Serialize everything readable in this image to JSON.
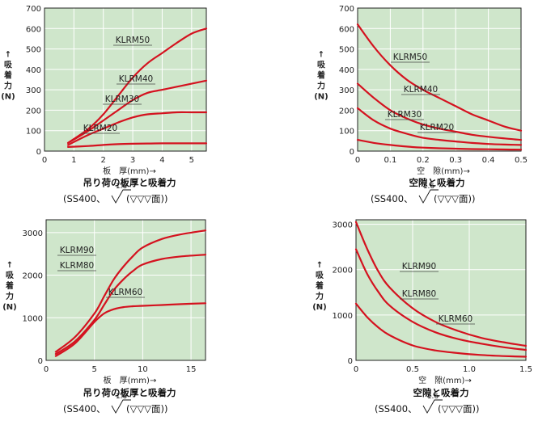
{
  "chart_data": [
    {
      "type": "line",
      "xlabel": "板　厚(mm)→",
      "ylabel": [
        "↑",
        "吸",
        "着",
        "力",
        "(N)"
      ],
      "caption": "吊り荷の板厚と吸着力",
      "condition": {
        "prefix": "(SS400、",
        "roughness": "1.6",
        "suffix": "(▽▽▽面))"
      },
      "xlim": [
        0,
        5.5
      ],
      "ylim": [
        0,
        700
      ],
      "xticks": [
        "0",
        "1",
        "2",
        "3",
        "4",
        "5"
      ],
      "yticks": [
        "0",
        "100",
        "200",
        "300",
        "400",
        "500",
        "600",
        "700"
      ],
      "series": [
        {
          "name": "KLRM50",
          "x": [
            0.8,
            1.5,
            2.0,
            2.5,
            3.0,
            3.5,
            4.0,
            4.5,
            5.0,
            5.5
          ],
          "y": [
            40,
            110,
            180,
            270,
            360,
            430,
            480,
            530,
            575,
            600
          ]
        },
        {
          "name": "KLRM40",
          "x": [
            0.8,
            1.5,
            2.0,
            2.5,
            3.0,
            3.5,
            4.0,
            4.5,
            5.0,
            5.5
          ],
          "y": [
            40,
            100,
            150,
            200,
            250,
            285,
            300,
            315,
            330,
            345
          ]
        },
        {
          "name": "KLRM30",
          "x": [
            0.8,
            1.5,
            2.0,
            2.5,
            3.0,
            3.5,
            4.0,
            4.5,
            5.0,
            5.5
          ],
          "y": [
            30,
            80,
            110,
            140,
            165,
            180,
            185,
            190,
            190,
            190
          ]
        },
        {
          "name": "KLRM20",
          "x": [
            0.8,
            1.5,
            2.0,
            2.5,
            3.0,
            3.5,
            4.0,
            4.5,
            5.0,
            5.5
          ],
          "y": [
            20,
            25,
            30,
            34,
            36,
            37,
            38,
            38,
            38,
            38
          ]
        }
      ]
    },
    {
      "type": "line",
      "xlabel": "空　隙(mm)→",
      "ylabel": [
        "↑",
        "吸",
        "着",
        "力",
        "(N)"
      ],
      "caption": "空隙と吸着力",
      "condition": {
        "prefix": "(SS400、",
        "roughness": "1.6",
        "suffix": "(▽▽▽面))"
      },
      "xlim": [
        0,
        0.5
      ],
      "ylim": [
        0,
        700
      ],
      "xticks": [
        "0",
        "0.1",
        "0.2",
        "0.3",
        "0.4",
        "0.5"
      ],
      "yticks": [
        "0",
        "100",
        "200",
        "300",
        "400",
        "500",
        "600",
        "700"
      ],
      "series": [
        {
          "name": "KLRM50",
          "x": [
            0,
            0.05,
            0.1,
            0.15,
            0.2,
            0.25,
            0.3,
            0.35,
            0.4,
            0.45,
            0.5
          ],
          "y": [
            620,
            510,
            420,
            350,
            300,
            260,
            220,
            180,
            150,
            120,
            100
          ]
        },
        {
          "name": "KLRM40",
          "x": [
            0,
            0.05,
            0.1,
            0.15,
            0.2,
            0.25,
            0.3,
            0.35,
            0.4,
            0.45,
            0.5
          ],
          "y": [
            330,
            260,
            200,
            160,
            130,
            110,
            95,
            80,
            70,
            62,
            55
          ]
        },
        {
          "name": "KLRM30",
          "x": [
            0,
            0.05,
            0.1,
            0.15,
            0.2,
            0.25,
            0.3,
            0.35,
            0.4,
            0.45,
            0.5
          ],
          "y": [
            210,
            150,
            110,
            85,
            65,
            55,
            47,
            40,
            35,
            32,
            30
          ]
        },
        {
          "name": "KLRM20",
          "x": [
            0,
            0.05,
            0.1,
            0.15,
            0.2,
            0.25,
            0.3,
            0.35,
            0.4,
            0.45,
            0.5
          ],
          "y": [
            55,
            40,
            30,
            22,
            17,
            14,
            12,
            10,
            9,
            8,
            7
          ]
        }
      ]
    },
    {
      "type": "line",
      "xlabel": "板　厚(mm)→",
      "ylabel": [
        "↑",
        "吸",
        "着",
        "力",
        "(N)"
      ],
      "caption": "吊り荷の板厚と吸着力",
      "condition": {
        "prefix": "(SS400、",
        "roughness": "1.6",
        "suffix": "(▽▽▽面))"
      },
      "xlim": [
        0,
        16.5
      ],
      "ylim": [
        0,
        3300
      ],
      "xticks": [
        "0",
        "5",
        "10",
        "15"
      ],
      "yticks": [
        "0",
        "1000",
        "2000",
        "3000"
      ],
      "series": [
        {
          "name": "KLRM90",
          "x": [
            1,
            3,
            5,
            6,
            7,
            8,
            9,
            10,
            12,
            14,
            16.5
          ],
          "y": [
            200,
            550,
            1100,
            1500,
            1900,
            2200,
            2450,
            2650,
            2850,
            2960,
            3050
          ]
        },
        {
          "name": "KLRM80",
          "x": [
            1,
            3,
            5,
            6,
            7,
            8,
            9,
            10,
            12,
            14,
            16.5
          ],
          "y": [
            150,
            450,
            950,
            1300,
            1650,
            1900,
            2100,
            2250,
            2380,
            2440,
            2480
          ]
        },
        {
          "name": "KLRM60",
          "x": [
            1,
            3,
            5,
            6,
            7,
            8,
            9,
            10,
            12,
            14,
            16.5
          ],
          "y": [
            100,
            400,
            900,
            1100,
            1200,
            1250,
            1270,
            1280,
            1300,
            1320,
            1340
          ]
        }
      ]
    },
    {
      "type": "line",
      "xlabel": "空　隙(mm)→",
      "ylabel": [
        "↑",
        "吸",
        "着",
        "力",
        "(N)"
      ],
      "caption": "空隙と吸着力",
      "condition": {
        "prefix": "(SS400、",
        "roughness": "1.6",
        "suffix": "(▽▽▽面))"
      },
      "xlim": [
        0,
        1.5
      ],
      "ylim": [
        0,
        3100
      ],
      "xticks": [
        "0",
        "0.5",
        "1.0",
        "1.5"
      ],
      "yticks": [
        "0",
        "1000",
        "2000",
        "3000"
      ],
      "series": [
        {
          "name": "KLRM90",
          "x": [
            0,
            0.1,
            0.2,
            0.3,
            0.5,
            0.7,
            0.9,
            1.1,
            1.3,
            1.5
          ],
          "y": [
            3050,
            2450,
            1950,
            1600,
            1150,
            850,
            650,
            500,
            400,
            320
          ]
        },
        {
          "name": "KLRM80",
          "x": [
            0,
            0.1,
            0.2,
            0.3,
            0.5,
            0.7,
            0.9,
            1.1,
            1.3,
            1.5
          ],
          "y": [
            2450,
            1900,
            1500,
            1200,
            850,
            620,
            470,
            370,
            290,
            230
          ]
        },
        {
          "name": "KLRM60",
          "x": [
            0,
            0.1,
            0.2,
            0.3,
            0.5,
            0.7,
            0.9,
            1.1,
            1.3,
            1.5
          ],
          "y": [
            1250,
            950,
            720,
            550,
            330,
            220,
            160,
            120,
            95,
            80
          ]
        }
      ]
    }
  ]
}
